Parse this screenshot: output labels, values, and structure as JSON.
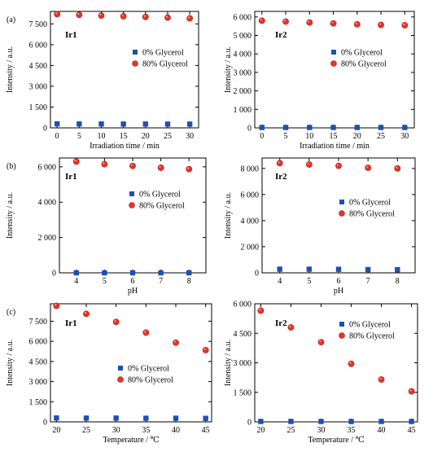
{
  "colors": {
    "glycerol0": "#1f4fb3",
    "glycerol80": "#e8322a"
  },
  "chart_data": [
    {
      "type": "scatter",
      "panel_label": "(a)",
      "title": "Ir1",
      "xlabel": "Irradiation time / min",
      "ylabel": "Intensity / a.u.",
      "xlim": [
        -1.5,
        32
      ],
      "ylim": [
        0,
        8400
      ],
      "xticks": [
        0,
        5,
        10,
        15,
        20,
        25,
        30
      ],
      "xticklabels": [
        "0",
        "5",
        "10",
        "15",
        "20",
        "25",
        "30"
      ],
      "yticks": [
        0,
        1500,
        3000,
        4500,
        6000,
        7500
      ],
      "yticklabels": [
        "0",
        "1 500",
        "3 000",
        "4 500",
        "6 000",
        "7 500"
      ],
      "series": [
        {
          "name": "0% Glycerol",
          "marker": "square",
          "x": [
            0,
            5,
            10,
            15,
            20,
            25,
            30
          ],
          "y": [
            290,
            280,
            280,
            275,
            275,
            270,
            270
          ]
        },
        {
          "name": "80% Glycerol",
          "marker": "circle",
          "x": [
            0,
            5,
            10,
            15,
            20,
            25,
            30
          ],
          "y": [
            8200,
            8150,
            8100,
            8050,
            8000,
            7950,
            7900
          ]
        }
      ]
    },
    {
      "type": "scatter",
      "title": "Ir2",
      "xlabel": "Irradiation time / min",
      "ylabel": "Intensity / a.u.",
      "xlim": [
        -1.5,
        32
      ],
      "ylim": [
        0,
        6300
      ],
      "xticks": [
        0,
        5,
        10,
        15,
        20,
        25,
        30
      ],
      "xticklabels": [
        "0",
        "5",
        "10",
        "15",
        "20",
        "25",
        "30"
      ],
      "yticks": [
        0,
        1000,
        2000,
        3000,
        4000,
        5000,
        6000
      ],
      "yticklabels": [
        "0",
        "1 000",
        "2 000",
        "3 000",
        "4 000",
        "5 000",
        "6 000"
      ],
      "series": [
        {
          "name": "0% Glycerol",
          "marker": "square",
          "x": [
            0,
            5,
            10,
            15,
            20,
            25,
            30
          ],
          "y": [
            20,
            20,
            20,
            20,
            20,
            20,
            20
          ]
        },
        {
          "name": "80% Glycerol",
          "marker": "circle",
          "x": [
            0,
            5,
            10,
            15,
            20,
            25,
            30
          ],
          "y": [
            5800,
            5750,
            5700,
            5650,
            5600,
            5570,
            5550
          ]
        }
      ]
    },
    {
      "type": "scatter",
      "panel_label": "(b)",
      "title": "Ir1",
      "xlabel": "pH",
      "ylabel": "Intensity / a.u.",
      "xlim": [
        3.4,
        8.6
      ],
      "ylim": [
        0,
        6500
      ],
      "xticks": [
        4,
        5,
        6,
        7,
        8
      ],
      "xticklabels": [
        "4",
        "5",
        "6",
        "7",
        "8"
      ],
      "yticks": [
        0,
        2000,
        4000,
        6000
      ],
      "yticklabels": [
        "0",
        "2 000",
        "4 000",
        "6 000"
      ],
      "series": [
        {
          "name": "0% Glycerol",
          "marker": "square",
          "x": [
            4,
            5,
            6,
            7,
            8
          ],
          "y": [
            0,
            0,
            0,
            0,
            0
          ]
        },
        {
          "name": "80% Glycerol",
          "marker": "circle",
          "x": [
            4,
            5,
            6,
            7,
            8
          ],
          "y": [
            6300,
            6150,
            6050,
            5950,
            5870
          ]
        }
      ]
    },
    {
      "type": "scatter",
      "title": "Ir2",
      "xlabel": "pH",
      "ylabel": "Intensity / a.u.",
      "xlim": [
        3.4,
        8.6
      ],
      "ylim": [
        0,
        8800
      ],
      "xticks": [
        4,
        5,
        6,
        7,
        8
      ],
      "xticklabels": [
        "4",
        "5",
        "6",
        "7",
        "8"
      ],
      "yticks": [
        0,
        2000,
        4000,
        6000,
        8000
      ],
      "yticklabels": [
        "0",
        "2 000",
        "4 000",
        "6 000",
        "8 000"
      ],
      "series": [
        {
          "name": "0% Glycerol",
          "marker": "square",
          "x": [
            4,
            5,
            6,
            7,
            8
          ],
          "y": [
            280,
            280,
            270,
            250,
            240
          ]
        },
        {
          "name": "80% Glycerol",
          "marker": "circle",
          "x": [
            4,
            5,
            6,
            7,
            8
          ],
          "y": [
            8400,
            8300,
            8200,
            8050,
            8000
          ]
        }
      ]
    },
    {
      "type": "scatter",
      "panel_label": "(c)",
      "title": "Ir1",
      "xlabel": "Temperature / ℃",
      "ylabel": "Intensity / a.u.",
      "xlim": [
        19,
        46
      ],
      "ylim": [
        0,
        8800
      ],
      "xticks": [
        20,
        25,
        30,
        35,
        40,
        45
      ],
      "xticklabels": [
        "20",
        "25",
        "30",
        "35",
        "40",
        "45"
      ],
      "yticks": [
        0,
        1500,
        3000,
        4500,
        6000,
        7500
      ],
      "yticklabels": [
        "0",
        "1 500",
        "3 000",
        "4 500",
        "6 000",
        "7 500"
      ],
      "series": [
        {
          "name": "0% Glycerol",
          "marker": "square",
          "x": [
            20,
            25,
            30,
            35,
            40,
            45
          ],
          "y": [
            290,
            280,
            280,
            270,
            270,
            260
          ]
        },
        {
          "name": "80% Glycerol",
          "marker": "circle",
          "x": [
            20,
            25,
            30,
            35,
            40,
            45
          ],
          "y": [
            8650,
            8050,
            7450,
            6650,
            5900,
            5350
          ]
        }
      ]
    },
    {
      "type": "scatter",
      "title": "Ir2",
      "xlabel": "Temperature / ℃",
      "ylabel": "Intensity / a.u.",
      "xlim": [
        19,
        46
      ],
      "ylim": [
        0,
        6000
      ],
      "xticks": [
        20,
        25,
        30,
        35,
        40,
        45
      ],
      "xticklabels": [
        "20",
        "25",
        "30",
        "35",
        "40",
        "45"
      ],
      "yticks": [
        0,
        1500,
        3000,
        4500,
        6000
      ],
      "yticklabels": [
        "0",
        "1 500",
        "3 000",
        "4 500",
        "6 000"
      ],
      "series": [
        {
          "name": "0% Glycerol",
          "marker": "square",
          "x": [
            20,
            25,
            30,
            35,
            40,
            45
          ],
          "y": [
            20,
            20,
            20,
            20,
            20,
            20
          ]
        },
        {
          "name": "80% Glycerol",
          "marker": "circle",
          "x": [
            20,
            25,
            30,
            35,
            40,
            45
          ],
          "y": [
            5650,
            4800,
            4050,
            2950,
            2150,
            1550
          ]
        }
      ]
    }
  ]
}
